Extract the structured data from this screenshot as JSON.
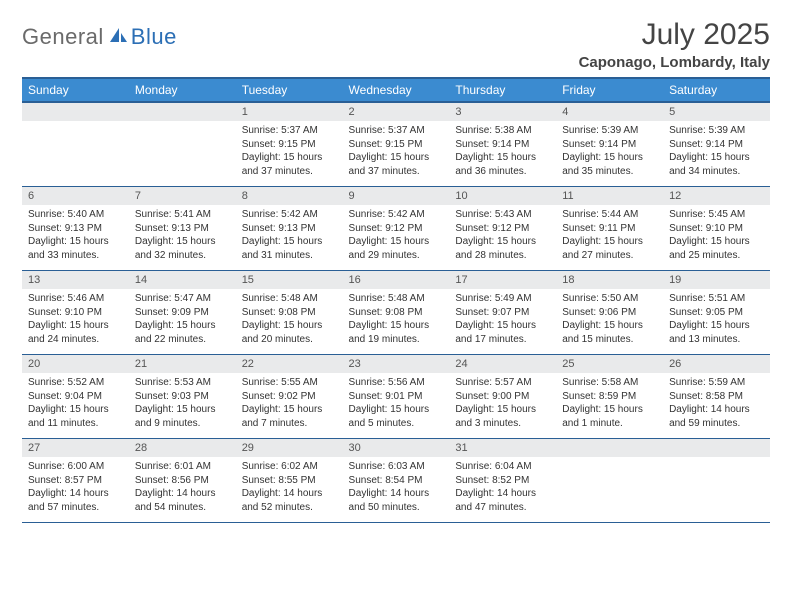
{
  "brand": {
    "general": "General",
    "blue": "Blue"
  },
  "title": "July 2025",
  "location": "Caponago, Lombardy, Italy",
  "colors": {
    "header_bg": "#3b8bd0",
    "header_border": "#2a5f95",
    "daynum_bg": "#e9eaeb",
    "text": "#333333",
    "logo_gray": "#6a6a6a",
    "logo_blue": "#2c6fb5"
  },
  "weekdays": [
    "Sunday",
    "Monday",
    "Tuesday",
    "Wednesday",
    "Thursday",
    "Friday",
    "Saturday"
  ],
  "weeks": [
    {
      "nums": [
        "",
        "",
        "1",
        "2",
        "3",
        "4",
        "5"
      ],
      "cells": [
        null,
        null,
        {
          "sr": "Sunrise: 5:37 AM",
          "ss": "Sunset: 9:15 PM",
          "d1": "Daylight: 15 hours",
          "d2": "and 37 minutes."
        },
        {
          "sr": "Sunrise: 5:37 AM",
          "ss": "Sunset: 9:15 PM",
          "d1": "Daylight: 15 hours",
          "d2": "and 37 minutes."
        },
        {
          "sr": "Sunrise: 5:38 AM",
          "ss": "Sunset: 9:14 PM",
          "d1": "Daylight: 15 hours",
          "d2": "and 36 minutes."
        },
        {
          "sr": "Sunrise: 5:39 AM",
          "ss": "Sunset: 9:14 PM",
          "d1": "Daylight: 15 hours",
          "d2": "and 35 minutes."
        },
        {
          "sr": "Sunrise: 5:39 AM",
          "ss": "Sunset: 9:14 PM",
          "d1": "Daylight: 15 hours",
          "d2": "and 34 minutes."
        }
      ]
    },
    {
      "nums": [
        "6",
        "7",
        "8",
        "9",
        "10",
        "11",
        "12"
      ],
      "cells": [
        {
          "sr": "Sunrise: 5:40 AM",
          "ss": "Sunset: 9:13 PM",
          "d1": "Daylight: 15 hours",
          "d2": "and 33 minutes."
        },
        {
          "sr": "Sunrise: 5:41 AM",
          "ss": "Sunset: 9:13 PM",
          "d1": "Daylight: 15 hours",
          "d2": "and 32 minutes."
        },
        {
          "sr": "Sunrise: 5:42 AM",
          "ss": "Sunset: 9:13 PM",
          "d1": "Daylight: 15 hours",
          "d2": "and 31 minutes."
        },
        {
          "sr": "Sunrise: 5:42 AM",
          "ss": "Sunset: 9:12 PM",
          "d1": "Daylight: 15 hours",
          "d2": "and 29 minutes."
        },
        {
          "sr": "Sunrise: 5:43 AM",
          "ss": "Sunset: 9:12 PM",
          "d1": "Daylight: 15 hours",
          "d2": "and 28 minutes."
        },
        {
          "sr": "Sunrise: 5:44 AM",
          "ss": "Sunset: 9:11 PM",
          "d1": "Daylight: 15 hours",
          "d2": "and 27 minutes."
        },
        {
          "sr": "Sunrise: 5:45 AM",
          "ss": "Sunset: 9:10 PM",
          "d1": "Daylight: 15 hours",
          "d2": "and 25 minutes."
        }
      ]
    },
    {
      "nums": [
        "13",
        "14",
        "15",
        "16",
        "17",
        "18",
        "19"
      ],
      "cells": [
        {
          "sr": "Sunrise: 5:46 AM",
          "ss": "Sunset: 9:10 PM",
          "d1": "Daylight: 15 hours",
          "d2": "and 24 minutes."
        },
        {
          "sr": "Sunrise: 5:47 AM",
          "ss": "Sunset: 9:09 PM",
          "d1": "Daylight: 15 hours",
          "d2": "and 22 minutes."
        },
        {
          "sr": "Sunrise: 5:48 AM",
          "ss": "Sunset: 9:08 PM",
          "d1": "Daylight: 15 hours",
          "d2": "and 20 minutes."
        },
        {
          "sr": "Sunrise: 5:48 AM",
          "ss": "Sunset: 9:08 PM",
          "d1": "Daylight: 15 hours",
          "d2": "and 19 minutes."
        },
        {
          "sr": "Sunrise: 5:49 AM",
          "ss": "Sunset: 9:07 PM",
          "d1": "Daylight: 15 hours",
          "d2": "and 17 minutes."
        },
        {
          "sr": "Sunrise: 5:50 AM",
          "ss": "Sunset: 9:06 PM",
          "d1": "Daylight: 15 hours",
          "d2": "and 15 minutes."
        },
        {
          "sr": "Sunrise: 5:51 AM",
          "ss": "Sunset: 9:05 PM",
          "d1": "Daylight: 15 hours",
          "d2": "and 13 minutes."
        }
      ]
    },
    {
      "nums": [
        "20",
        "21",
        "22",
        "23",
        "24",
        "25",
        "26"
      ],
      "cells": [
        {
          "sr": "Sunrise: 5:52 AM",
          "ss": "Sunset: 9:04 PM",
          "d1": "Daylight: 15 hours",
          "d2": "and 11 minutes."
        },
        {
          "sr": "Sunrise: 5:53 AM",
          "ss": "Sunset: 9:03 PM",
          "d1": "Daylight: 15 hours",
          "d2": "and 9 minutes."
        },
        {
          "sr": "Sunrise: 5:55 AM",
          "ss": "Sunset: 9:02 PM",
          "d1": "Daylight: 15 hours",
          "d2": "and 7 minutes."
        },
        {
          "sr": "Sunrise: 5:56 AM",
          "ss": "Sunset: 9:01 PM",
          "d1": "Daylight: 15 hours",
          "d2": "and 5 minutes."
        },
        {
          "sr": "Sunrise: 5:57 AM",
          "ss": "Sunset: 9:00 PM",
          "d1": "Daylight: 15 hours",
          "d2": "and 3 minutes."
        },
        {
          "sr": "Sunrise: 5:58 AM",
          "ss": "Sunset: 8:59 PM",
          "d1": "Daylight: 15 hours",
          "d2": "and 1 minute."
        },
        {
          "sr": "Sunrise: 5:59 AM",
          "ss": "Sunset: 8:58 PM",
          "d1": "Daylight: 14 hours",
          "d2": "and 59 minutes."
        }
      ]
    },
    {
      "nums": [
        "27",
        "28",
        "29",
        "30",
        "31",
        "",
        ""
      ],
      "cells": [
        {
          "sr": "Sunrise: 6:00 AM",
          "ss": "Sunset: 8:57 PM",
          "d1": "Daylight: 14 hours",
          "d2": "and 57 minutes."
        },
        {
          "sr": "Sunrise: 6:01 AM",
          "ss": "Sunset: 8:56 PM",
          "d1": "Daylight: 14 hours",
          "d2": "and 54 minutes."
        },
        {
          "sr": "Sunrise: 6:02 AM",
          "ss": "Sunset: 8:55 PM",
          "d1": "Daylight: 14 hours",
          "d2": "and 52 minutes."
        },
        {
          "sr": "Sunrise: 6:03 AM",
          "ss": "Sunset: 8:54 PM",
          "d1": "Daylight: 14 hours",
          "d2": "and 50 minutes."
        },
        {
          "sr": "Sunrise: 6:04 AM",
          "ss": "Sunset: 8:52 PM",
          "d1": "Daylight: 14 hours",
          "d2": "and 47 minutes."
        },
        null,
        null
      ]
    }
  ]
}
